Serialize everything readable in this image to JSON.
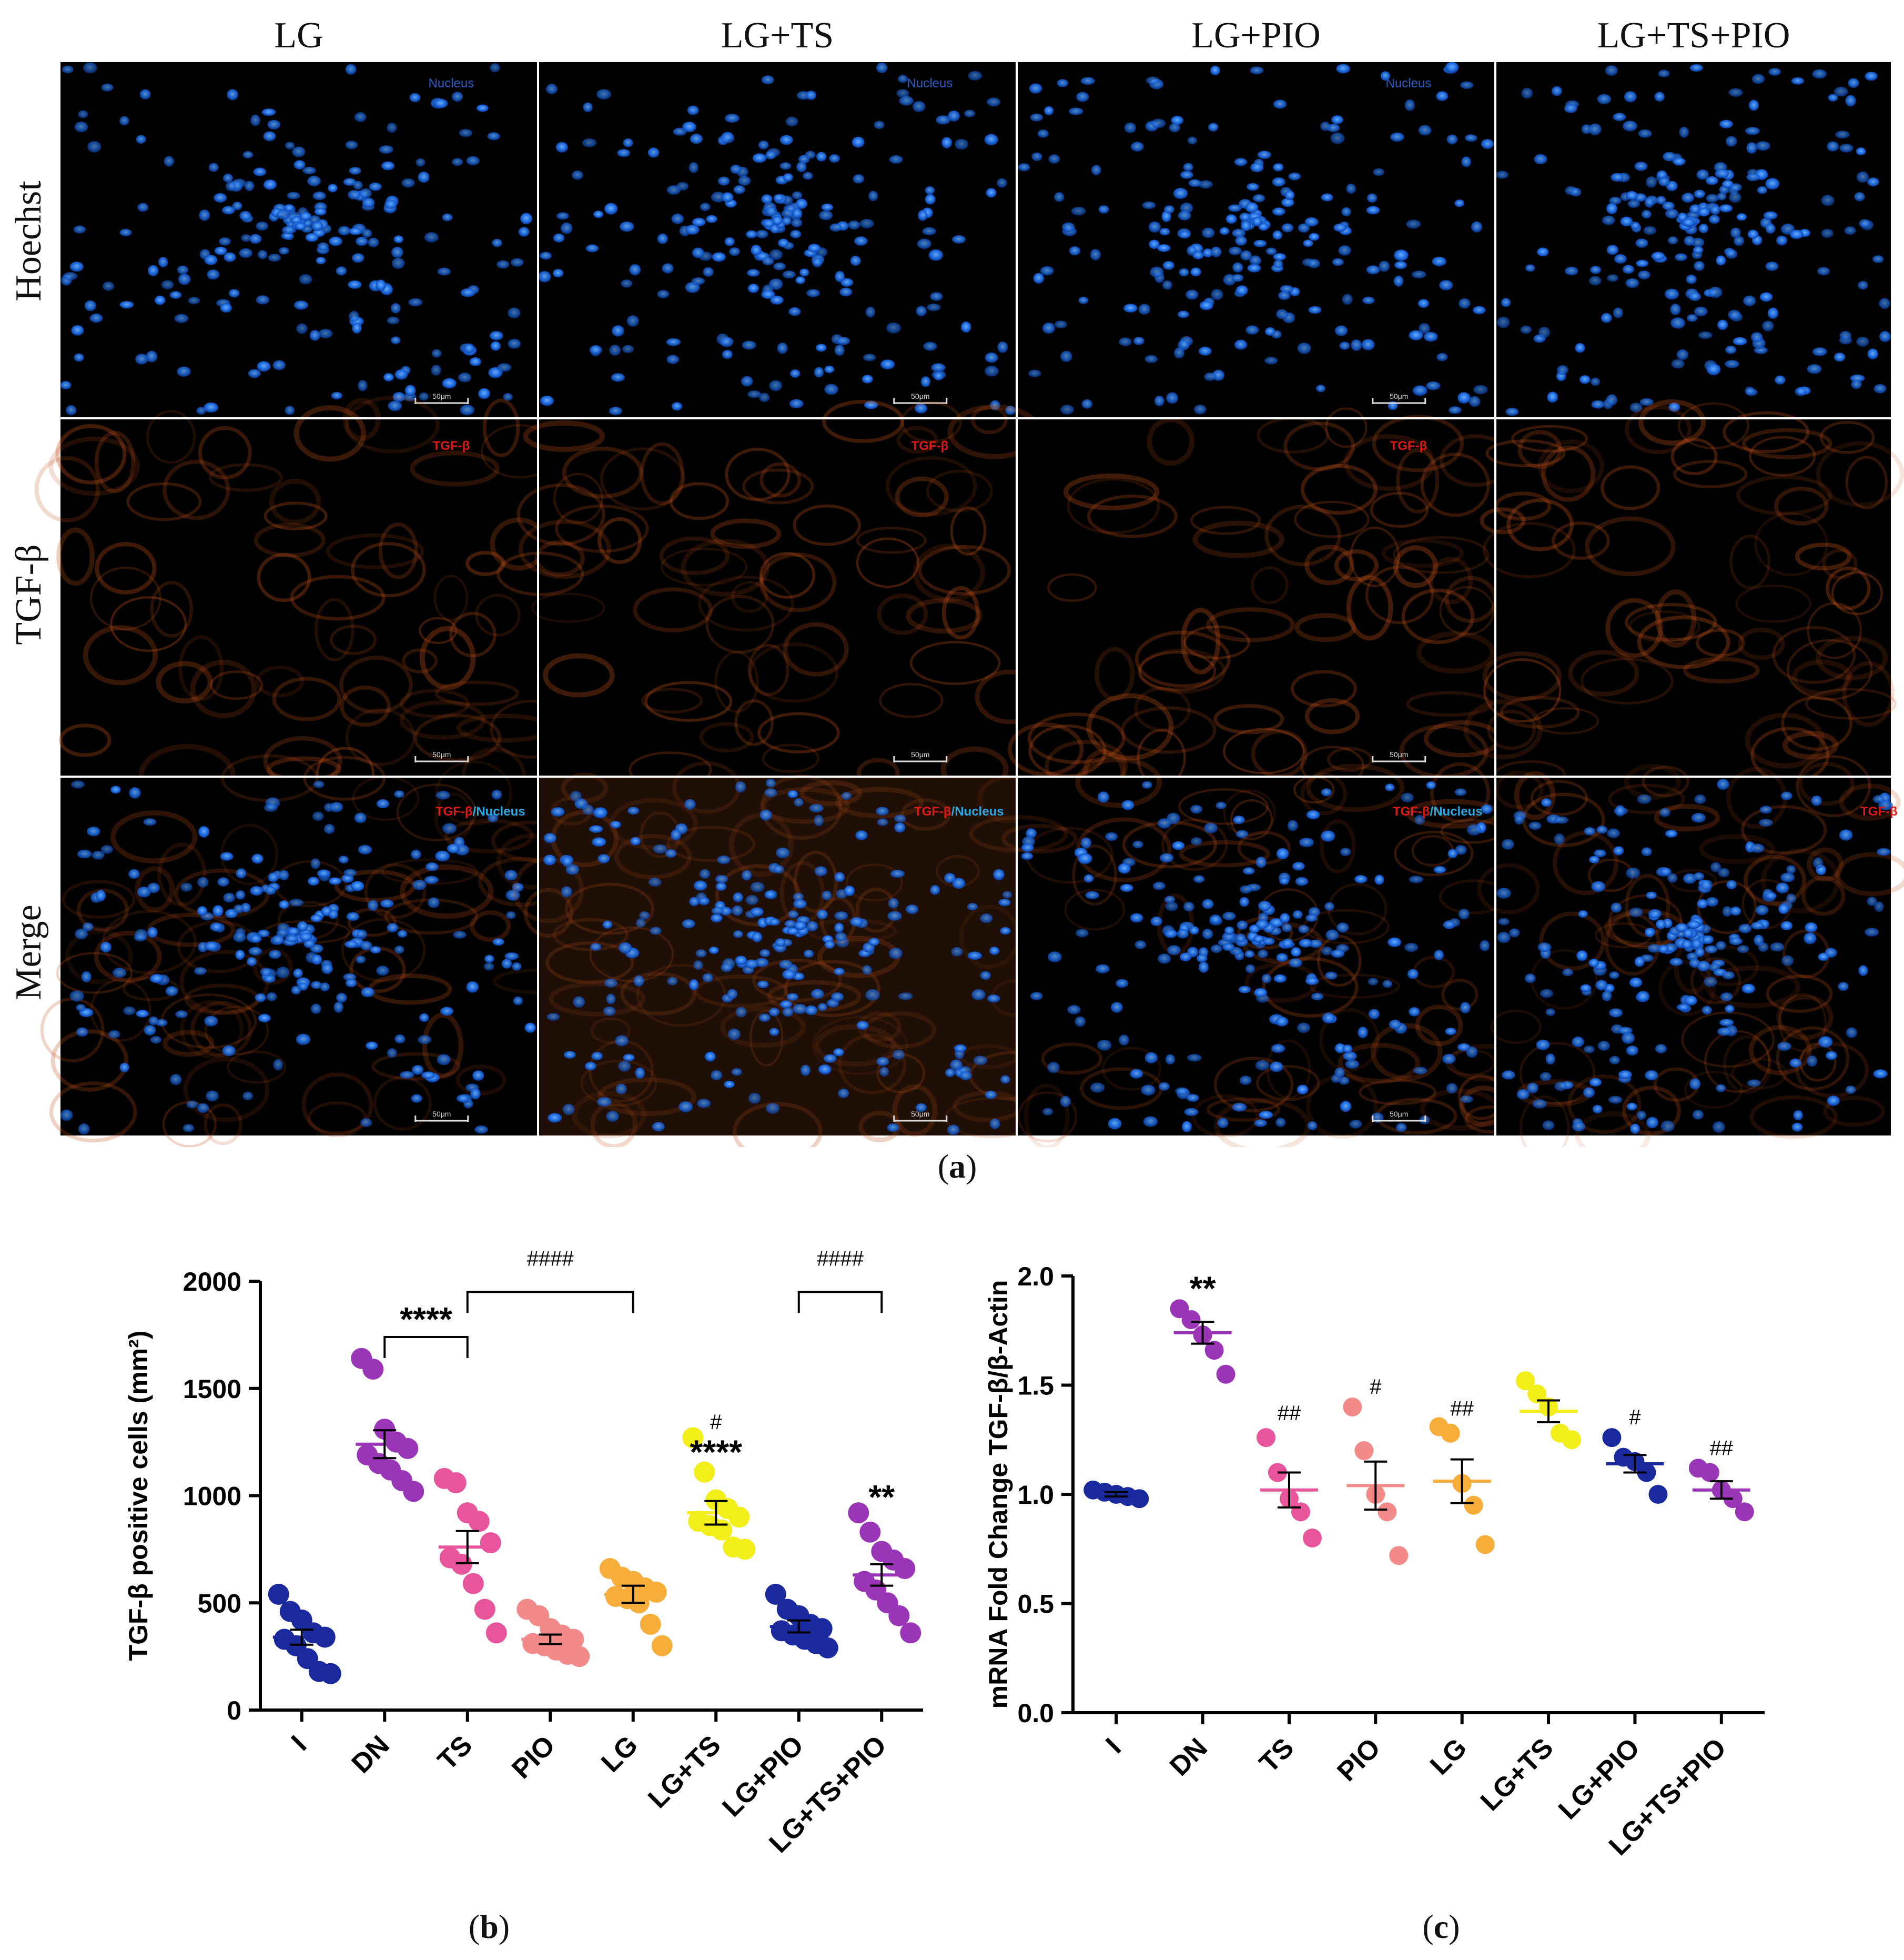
{
  "panel_a": {
    "caption": "a",
    "columns": [
      "LG",
      "LG+TS",
      "LG+PIO",
      "LG+TS+PIO"
    ],
    "rows": [
      "Hoechst",
      "TGF-β",
      "Merge"
    ],
    "micro_labels": {
      "nucleus": "Nucleus",
      "tgf": "TGF-β",
      "merge_red": "TGF-β",
      "merge_sep": "/",
      "merge_cyan": "Nucleus",
      "scale": "50μm"
    },
    "colors": {
      "nucleus": "#1f6fe6",
      "stain": "#c0501a",
      "label_red": "#e01818",
      "label_cyan": "#2aa8e0"
    }
  },
  "panel_b": {
    "caption": "b",
    "annotations": {
      "bracket_DN_TS": "****",
      "bracket_TS_LG": "####",
      "bracket_LGPIO_LGTSPIO": "####",
      "LG+TS_top": "#",
      "LG+TS_bottom": "****",
      "LG+TS+PIO": "**"
    }
  },
  "panel_c": {
    "caption": "c",
    "annotations": {
      "DN": "**",
      "TS": "##",
      "PIO": "#",
      "LG": "##",
      "LG+PIO": "#",
      "LG+TS+PIO": "##"
    }
  },
  "chart_data": [
    {
      "type": "scatter",
      "ylabel": "TGF-β positive cells  (mm²)",
      "ylim": [
        0,
        2000
      ],
      "yticks": [
        0,
        500,
        1000,
        1500,
        2000
      ],
      "categories": [
        "I",
        "DN",
        "TS",
        "PIO",
        "LG",
        "LG+TS",
        "LG+PIO",
        "LG+TS+PIO"
      ],
      "colors": [
        "#1a2a9e",
        "#9a35b8",
        "#e8559c",
        "#f38a8a",
        "#f7ad3a",
        "#f2ee1a",
        "#1a2a9e",
        "#9a35b8"
      ],
      "means": [
        340,
        1240,
        760,
        330,
        540,
        920,
        390,
        630
      ],
      "sem": [
        35,
        65,
        75,
        22,
        40,
        55,
        28,
        50
      ],
      "points": [
        [
          540,
          460,
          420,
          360,
          340,
          330,
          300,
          240,
          180,
          170
        ],
        [
          1640,
          1590,
          1310,
          1250,
          1220,
          1190,
          1150,
          1120,
          1070,
          1020
        ],
        [
          1080,
          1060,
          920,
          880,
          780,
          710,
          680,
          590,
          470,
          360
        ],
        [
          470,
          440,
          380,
          350,
          330,
          310,
          300,
          280,
          260,
          250
        ],
        [
          660,
          620,
          600,
          570,
          550,
          530,
          520,
          500,
          400,
          300
        ],
        [
          1270,
          1110,
          980,
          940,
          900,
          880,
          860,
          840,
          760,
          750
        ],
        [
          540,
          470,
          440,
          400,
          380,
          370,
          350,
          330,
          310,
          290
        ],
        [
          920,
          830,
          740,
          700,
          660,
          600,
          560,
          500,
          440,
          360
        ]
      ]
    },
    {
      "type": "scatter",
      "ylabel": "mRNA Fold Change TGF-β/β-Actin",
      "ylim": [
        0,
        2.0
      ],
      "yticks": [
        0.0,
        0.5,
        1.0,
        1.5,
        2.0
      ],
      "categories": [
        "I",
        "DN",
        "TS",
        "PIO",
        "LG",
        "LG+TS",
        "LG+PIO",
        "LG+TS+PIO"
      ],
      "colors": [
        "#1a2a9e",
        "#9a35b8",
        "#e8559c",
        "#f38a8a",
        "#f7ad3a",
        "#f2ee1a",
        "#1a2a9e",
        "#9a35b8"
      ],
      "means": [
        1.0,
        1.74,
        1.02,
        1.04,
        1.06,
        1.38,
        1.14,
        1.02
      ],
      "sem": [
        0.01,
        0.05,
        0.08,
        0.11,
        0.1,
        0.05,
        0.04,
        0.04
      ],
      "points": [
        [
          1.02,
          1.01,
          1.0,
          0.99,
          0.98
        ],
        [
          1.85,
          1.8,
          1.73,
          1.66,
          1.55
        ],
        [
          1.26,
          1.1,
          0.98,
          0.92,
          0.8
        ],
        [
          1.4,
          1.2,
          1.0,
          0.92,
          0.72
        ],
        [
          1.31,
          1.28,
          1.05,
          0.95,
          0.77
        ],
        [
          1.52,
          1.46,
          1.4,
          1.28,
          1.25
        ],
        [
          1.26,
          1.17,
          1.15,
          1.1,
          1.0
        ],
        [
          1.12,
          1.1,
          1.02,
          0.98,
          0.92
        ]
      ]
    }
  ]
}
